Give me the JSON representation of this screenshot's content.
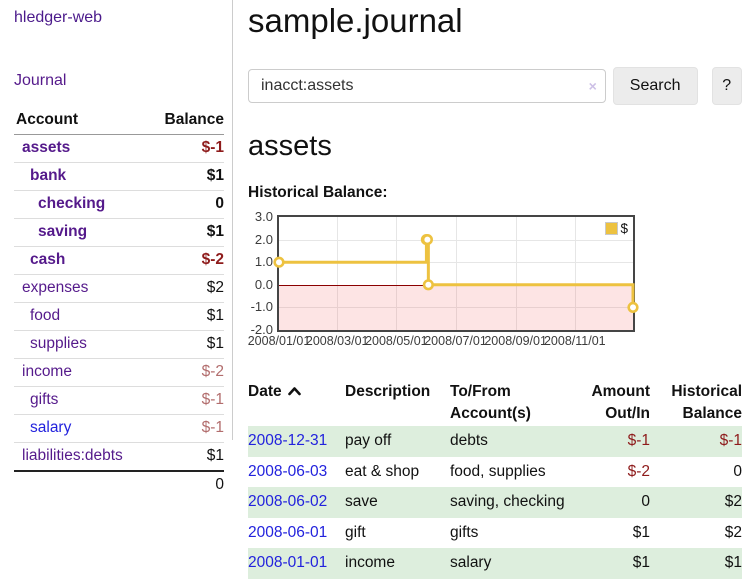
{
  "colors": {
    "link_purple": "#551a8b",
    "link_blue": "#2222dd",
    "negative_strong": "#8e1b1b",
    "negative_muted": "#b26d6d",
    "series_gold": "#edc240",
    "stripe_green": "#ddeedd",
    "negative_region_pink": "rgba(244,90,90,0.16)",
    "zero_line_red": "#8b0000"
  },
  "brand": "hledger-web",
  "nav": {
    "journal_label": "Journal"
  },
  "sidebar_table": {
    "headers": {
      "account": "Account",
      "balance": "Balance"
    },
    "rows": [
      {
        "name": "assets",
        "level": 1,
        "bold": true,
        "link": "purple",
        "balance": "$-1",
        "balance_class": "neg-strong"
      },
      {
        "name": "bank",
        "level": 2,
        "bold": true,
        "link": "purple",
        "balance": "$1",
        "balance_class": ""
      },
      {
        "name": "checking",
        "level": 3,
        "bold": true,
        "link": "purple",
        "balance": "0",
        "balance_class": ""
      },
      {
        "name": "saving",
        "level": 3,
        "bold": true,
        "link": "purple",
        "balance": "$1",
        "balance_class": ""
      },
      {
        "name": "cash",
        "level": 2,
        "bold": true,
        "link": "purple",
        "balance": "$-2",
        "balance_class": "neg-strong"
      },
      {
        "name": "expenses",
        "level": 1,
        "bold": false,
        "link": "purple",
        "balance": "$2",
        "balance_class": ""
      },
      {
        "name": "food",
        "level": 2,
        "bold": false,
        "link": "purple",
        "balance": "$1",
        "balance_class": ""
      },
      {
        "name": "supplies",
        "level": 2,
        "bold": false,
        "link": "purple",
        "balance": "$1",
        "balance_class": ""
      },
      {
        "name": "income",
        "level": 1,
        "bold": false,
        "link": "purple",
        "balance": "$-2",
        "balance_class": "neg-muted"
      },
      {
        "name": "gifts",
        "level": 2,
        "bold": false,
        "link": "purple",
        "balance": "$-1",
        "balance_class": "neg-muted"
      },
      {
        "name": "salary",
        "level": 2,
        "bold": false,
        "link": "blue",
        "balance": "$-1",
        "balance_class": "neg-muted"
      },
      {
        "name": "liabilities:debts",
        "level": 1,
        "bold": false,
        "link": "purple",
        "balance": "$1",
        "balance_class": ""
      }
    ],
    "total": "0"
  },
  "header": {
    "title": "sample.journal"
  },
  "search": {
    "value": "inacct:assets",
    "clear_label": "×",
    "button_label": "Search",
    "help_label": "?"
  },
  "account_page": {
    "heading": "assets",
    "chart_label": "Historical Balance:"
  },
  "chart_data": {
    "type": "line",
    "step": true,
    "title": "Historical Balance:",
    "legend_position": "top-right",
    "grid": true,
    "ylim": [
      -2,
      3
    ],
    "x_max_day": 365,
    "yticks": [
      {
        "v": 3,
        "label": "3.0"
      },
      {
        "v": 2,
        "label": "2.0"
      },
      {
        "v": 1,
        "label": "1.0"
      },
      {
        "v": 0,
        "label": "0.0"
      },
      {
        "v": -1,
        "label": "-1.0"
      },
      {
        "v": -2,
        "label": "-2.0"
      }
    ],
    "xticks": [
      {
        "day": 0,
        "label": "2008/01/01"
      },
      {
        "day": 60,
        "label": "2008/03/01"
      },
      {
        "day": 121,
        "label": "2008/05/01"
      },
      {
        "day": 182,
        "label": "2008/07/01"
      },
      {
        "day": 244,
        "label": "2008/09/01"
      },
      {
        "day": 305,
        "label": "2008/11/01"
      }
    ],
    "series": [
      {
        "name": "$",
        "points": [
          {
            "date": "2008-01-01",
            "day": 0,
            "value": 1
          },
          {
            "date": "2008-06-01",
            "day": 152,
            "value": 2
          },
          {
            "date": "2008-06-02",
            "day": 153,
            "value": 2
          },
          {
            "date": "2008-06-03",
            "day": 154,
            "value": 0
          },
          {
            "date": "2008-12-31",
            "day": 365,
            "value": -1
          }
        ]
      }
    ]
  },
  "register_table": {
    "headers": {
      "date": "Date",
      "description": "Description",
      "tofrom_line1": "To/From",
      "tofrom_line2": "Account(s)",
      "amount_line1": "Amount",
      "amount_line2": "Out/In",
      "balance_line1": "Historical",
      "balance_line2": "Balance"
    },
    "rows": [
      {
        "date": "2008-12-31",
        "description": "pay off",
        "tofrom": "debts",
        "amount": "$-1",
        "amount_negative": true,
        "balance": "$-1",
        "balance_negative": true,
        "striped": true
      },
      {
        "date": "2008-06-03",
        "description": "eat & shop",
        "tofrom": "food, supplies",
        "amount": "$-2",
        "amount_negative": true,
        "balance": "0",
        "balance_negative": false,
        "striped": false
      },
      {
        "date": "2008-06-02",
        "description": "save",
        "tofrom": "saving, checking",
        "amount": "0",
        "amount_negative": false,
        "balance": "$2",
        "balance_negative": false,
        "striped": true
      },
      {
        "date": "2008-06-01",
        "description": "gift",
        "tofrom": "gifts",
        "amount": "$1",
        "amount_negative": false,
        "balance": "$2",
        "balance_negative": false,
        "striped": false
      },
      {
        "date": "2008-01-01",
        "description": "income",
        "tofrom": "salary",
        "amount": "$1",
        "amount_negative": false,
        "balance": "$1",
        "balance_negative": false,
        "striped": true
      }
    ]
  }
}
